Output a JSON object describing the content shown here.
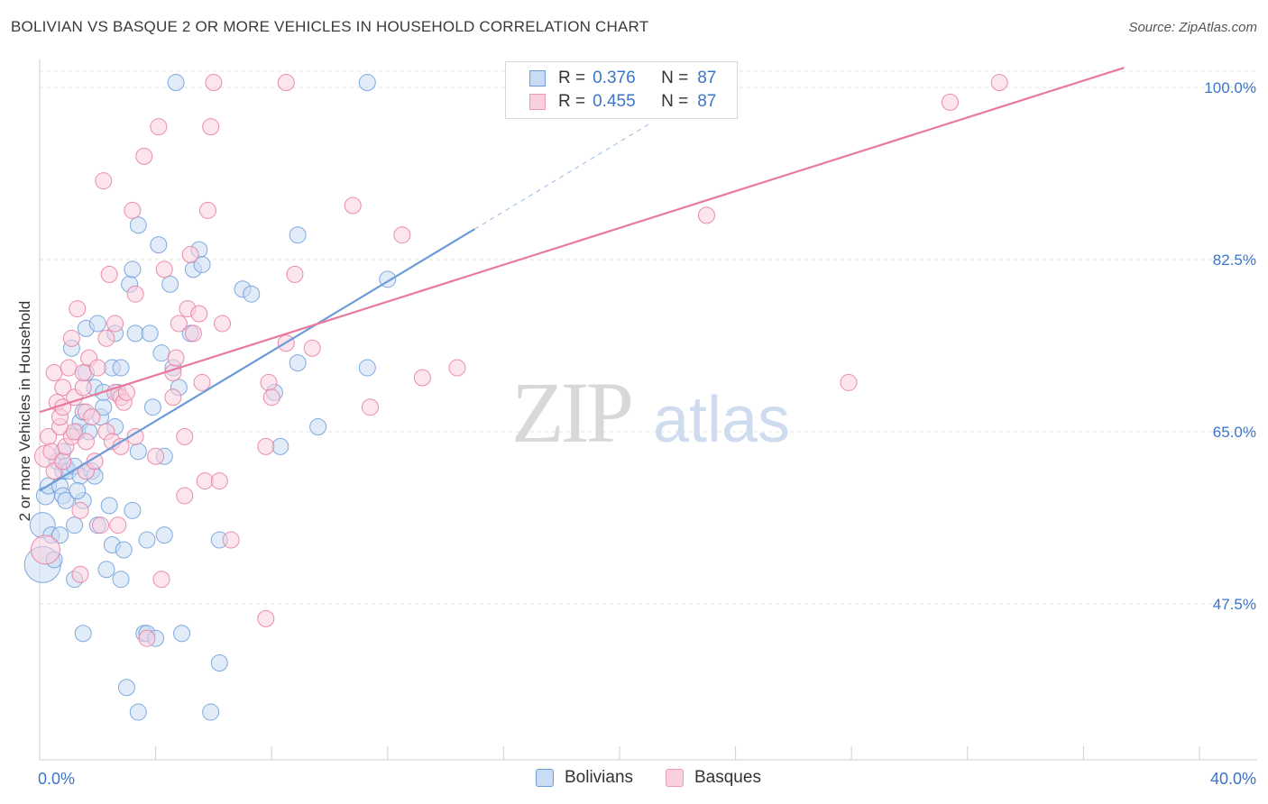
{
  "title": "BOLIVIAN VS BASQUE 2 OR MORE VEHICLES IN HOUSEHOLD CORRELATION CHART",
  "source": "Source: ZipAtlas.com",
  "watermark": {
    "zip": "ZIP",
    "atlas": "atlas"
  },
  "legend": {
    "rows": [
      {
        "r_label": "R =",
        "r_value": "0.376",
        "n_label": "N =",
        "n_value": "87",
        "swatch_fill": "#c9dcf3",
        "swatch_stroke": "#6b9bd9"
      },
      {
        "r_label": "R =",
        "r_value": "0.455",
        "n_label": "N =",
        "n_value": "87",
        "swatch_fill": "#f9d0de",
        "swatch_stroke": "#e89bb4"
      }
    ]
  },
  "bottom_legend": [
    {
      "label": "Bolivians",
      "fill": "#c9dcf3",
      "stroke": "#6b9bd9"
    },
    {
      "label": "Basques",
      "fill": "#f9d0de",
      "stroke": "#e89bb4"
    }
  ],
  "chart_data": {
    "type": "scatter",
    "title": "BOLIVIAN VS BASQUE 2 OR MORE VEHICLES IN HOUSEHOLD CORRELATION CHART",
    "xlabel": "",
    "ylabel": "2 or more Vehicles in Household",
    "xlim": [
      0,
      40
    ],
    "ylim": [
      30,
      102
    ],
    "x_tick_labels": [
      {
        "value": 0,
        "label": "0.0%"
      },
      {
        "value": 40,
        "label": "40.0%"
      }
    ],
    "y_tick_labels": [
      {
        "value": 47.5,
        "label": "47.5%"
      },
      {
        "value": 65.0,
        "label": "65.0%"
      },
      {
        "value": 82.5,
        "label": "82.5%"
      },
      {
        "value": 100.0,
        "label": "100.0%"
      }
    ],
    "x_ticks_minor": [
      4,
      8,
      12,
      16,
      20,
      24,
      28,
      32,
      36,
      40
    ],
    "grid": true,
    "series": [
      {
        "name": "Bolivians",
        "color": "#6b9bd9",
        "fill": "#c9dcf3",
        "trend": {
          "x0": 0.0,
          "y0": 59.0,
          "x1": 15.0,
          "y1": 85.6,
          "dash_to_x": 21.0
        },
        "points": [
          [
            0.1,
            51.5,
            20
          ],
          [
            0.1,
            55.5,
            14
          ],
          [
            0.2,
            58.5,
            10
          ],
          [
            0.3,
            59.5,
            9
          ],
          [
            0.4,
            54.5,
            9
          ],
          [
            0.5,
            52.0,
            9
          ],
          [
            0.7,
            54.5,
            9
          ],
          [
            0.6,
            62.0,
            9
          ],
          [
            0.7,
            59.5,
            9
          ],
          [
            0.8,
            61.0,
            9
          ],
          [
            0.8,
            63.0,
            9
          ],
          [
            0.9,
            61.5,
            9
          ],
          [
            0.8,
            58.5,
            9
          ],
          [
            1.0,
            61.0,
            9
          ],
          [
            1.1,
            73.5,
            9
          ],
          [
            1.2,
            61.5,
            9
          ],
          [
            1.2,
            55.5,
            9
          ],
          [
            1.2,
            50.0,
            9
          ],
          [
            1.3,
            65.0,
            9
          ],
          [
            1.4,
            60.5,
            9
          ],
          [
            1.4,
            66.0,
            9
          ],
          [
            1.5,
            58.0,
            9
          ],
          [
            1.5,
            67.0,
            9
          ],
          [
            1.5,
            44.5,
            9
          ],
          [
            1.6,
            75.5,
            9
          ],
          [
            1.6,
            71.0,
            9
          ],
          [
            1.7,
            65.0,
            9
          ],
          [
            1.8,
            61.0,
            9
          ],
          [
            1.9,
            69.5,
            9
          ],
          [
            2.0,
            76.0,
            9
          ],
          [
            2.0,
            55.5,
            9
          ],
          [
            2.1,
            66.5,
            9
          ],
          [
            2.2,
            67.5,
            9
          ],
          [
            2.3,
            51.0,
            9
          ],
          [
            2.4,
            57.5,
            9
          ],
          [
            2.5,
            53.5,
            9
          ],
          [
            2.5,
            71.5,
            9
          ],
          [
            2.6,
            75.0,
            9
          ],
          [
            2.7,
            69.0,
            9
          ],
          [
            2.8,
            71.5,
            9
          ],
          [
            2.8,
            50.0,
            9
          ],
          [
            2.9,
            53.0,
            9
          ],
          [
            3.0,
            39.0,
            9
          ],
          [
            3.1,
            80.0,
            9
          ],
          [
            3.2,
            81.5,
            9
          ],
          [
            3.3,
            75.0,
            9
          ],
          [
            3.4,
            63.0,
            9
          ],
          [
            3.4,
            86.0,
            9
          ],
          [
            3.4,
            36.5,
            9
          ],
          [
            3.6,
            44.5,
            9
          ],
          [
            3.7,
            44.5,
            9
          ],
          [
            3.7,
            54.0,
            9
          ],
          [
            3.8,
            75.0,
            9
          ],
          [
            3.9,
            67.5,
            9
          ],
          [
            4.0,
            44.0,
            9
          ],
          [
            4.1,
            84.0,
            9
          ],
          [
            4.2,
            73.0,
            9
          ],
          [
            4.3,
            54.5,
            9
          ],
          [
            4.3,
            62.5,
            9
          ],
          [
            4.5,
            80.0,
            9
          ],
          [
            4.6,
            71.5,
            9
          ],
          [
            4.7,
            100.5,
            9
          ],
          [
            4.8,
            69.5,
            9
          ],
          [
            4.9,
            44.5,
            9
          ],
          [
            5.2,
            75.0,
            9
          ],
          [
            5.3,
            81.5,
            9
          ],
          [
            5.5,
            83.5,
            9
          ],
          [
            5.6,
            82.0,
            9
          ],
          [
            5.9,
            36.5,
            9
          ],
          [
            6.2,
            41.5,
            9
          ],
          [
            6.2,
            54.0,
            9
          ],
          [
            7.0,
            79.5,
            9
          ],
          [
            7.3,
            79.0,
            9
          ],
          [
            8.1,
            69.0,
            9
          ],
          [
            8.3,
            63.5,
            9
          ],
          [
            8.9,
            72.0,
            9
          ],
          [
            8.9,
            85.0,
            9
          ],
          [
            9.6,
            65.5,
            9
          ],
          [
            11.3,
            71.5,
            9
          ],
          [
            12.0,
            80.5,
            9
          ],
          [
            11.3,
            100.5,
            9
          ],
          [
            2.6,
            65.5,
            9
          ],
          [
            1.9,
            60.5,
            9
          ],
          [
            0.9,
            58.0,
            9
          ],
          [
            1.3,
            59.0,
            9
          ],
          [
            3.2,
            57.0,
            9
          ],
          [
            2.2,
            69.0,
            9
          ]
        ]
      },
      {
        "name": "Basques",
        "color": "#e87a9e",
        "fill": "#f9d0de",
        "trend": {
          "x0": 0.0,
          "y0": 67.0,
          "x1": 37.4,
          "y1": 102.0
        },
        "points": [
          [
            0.2,
            53.0,
            16
          ],
          [
            0.2,
            62.5,
            12
          ],
          [
            0.3,
            64.5,
            9
          ],
          [
            0.4,
            63.0,
            9
          ],
          [
            0.5,
            61.0,
            9
          ],
          [
            0.5,
            71.0,
            9
          ],
          [
            0.6,
            68.0,
            9
          ],
          [
            0.7,
            65.5,
            9
          ],
          [
            0.7,
            66.5,
            9
          ],
          [
            0.8,
            62.0,
            9
          ],
          [
            0.8,
            67.5,
            9
          ],
          [
            0.8,
            69.5,
            9
          ],
          [
            0.9,
            63.5,
            9
          ],
          [
            1.0,
            71.5,
            9
          ],
          [
            1.1,
            64.5,
            9
          ],
          [
            1.1,
            74.5,
            9
          ],
          [
            1.2,
            65.0,
            9
          ],
          [
            1.2,
            68.5,
            9
          ],
          [
            1.3,
            77.5,
            9
          ],
          [
            1.4,
            57.0,
            9
          ],
          [
            1.4,
            50.5,
            9
          ],
          [
            1.5,
            69.5,
            9
          ],
          [
            1.5,
            71.0,
            9
          ],
          [
            1.6,
            67.0,
            9
          ],
          [
            1.6,
            61.0,
            9
          ],
          [
            1.6,
            64.0,
            9
          ],
          [
            1.7,
            72.5,
            9
          ],
          [
            1.8,
            66.5,
            9
          ],
          [
            1.9,
            62.0,
            9
          ],
          [
            2.0,
            71.5,
            9
          ],
          [
            2.1,
            55.5,
            9
          ],
          [
            2.2,
            90.5,
            9
          ],
          [
            2.3,
            65.0,
            9
          ],
          [
            2.3,
            74.5,
            9
          ],
          [
            2.4,
            81.0,
            9
          ],
          [
            2.5,
            64.0,
            9
          ],
          [
            2.6,
            69.0,
            9
          ],
          [
            2.6,
            76.0,
            9
          ],
          [
            2.7,
            55.5,
            9
          ],
          [
            2.8,
            63.5,
            9
          ],
          [
            2.8,
            68.5,
            9
          ],
          [
            2.9,
            68.0,
            9
          ],
          [
            3.0,
            69.0,
            9
          ],
          [
            3.2,
            87.5,
            9
          ],
          [
            3.3,
            79.0,
            9
          ],
          [
            3.3,
            64.5,
            9
          ],
          [
            3.6,
            93.0,
            9
          ],
          [
            3.7,
            44.0,
            9
          ],
          [
            4.0,
            62.5,
            9
          ],
          [
            4.1,
            96.0,
            9
          ],
          [
            4.2,
            50.0,
            9
          ],
          [
            4.3,
            81.5,
            9
          ],
          [
            4.6,
            68.5,
            9
          ],
          [
            4.6,
            71.0,
            9
          ],
          [
            4.7,
            72.5,
            9
          ],
          [
            4.8,
            76.0,
            9
          ],
          [
            5.0,
            64.5,
            9
          ],
          [
            5.0,
            58.5,
            9
          ],
          [
            5.1,
            77.5,
            9
          ],
          [
            5.2,
            83.0,
            9
          ],
          [
            5.3,
            75.0,
            9
          ],
          [
            5.5,
            77.0,
            9
          ],
          [
            5.6,
            70.0,
            9
          ],
          [
            5.7,
            60.0,
            9
          ],
          [
            5.8,
            87.5,
            9
          ],
          [
            5.9,
            96.0,
            9
          ],
          [
            6.0,
            100.5,
            9
          ],
          [
            6.2,
            60.0,
            9
          ],
          [
            6.3,
            76.0,
            9
          ],
          [
            6.6,
            54.0,
            9
          ],
          [
            7.8,
            63.5,
            9
          ],
          [
            7.8,
            46.0,
            9
          ],
          [
            7.9,
            70.0,
            9
          ],
          [
            8.0,
            68.5,
            9
          ],
          [
            8.5,
            74.0,
            9
          ],
          [
            8.5,
            100.5,
            9
          ],
          [
            8.8,
            81.0,
            9
          ],
          [
            9.4,
            73.5,
            9
          ],
          [
            10.8,
            88.0,
            9
          ],
          [
            11.4,
            67.5,
            9
          ],
          [
            12.5,
            85.0,
            9
          ],
          [
            13.2,
            70.5,
            9
          ],
          [
            14.4,
            71.5,
            9
          ],
          [
            23.0,
            87.0,
            9
          ],
          [
            27.9,
            70.0,
            9
          ],
          [
            31.4,
            98.5,
            9
          ],
          [
            33.1,
            100.5,
            9
          ]
        ]
      }
    ]
  }
}
